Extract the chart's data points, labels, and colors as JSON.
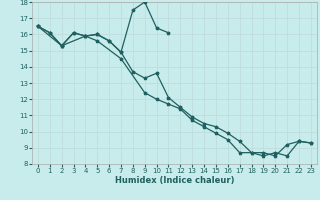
{
  "xlabel": "Humidex (Indice chaleur)",
  "bg_color": "#c8ecec",
  "grid_color": "#c0dcdc",
  "line_color": "#206060",
  "xlim": [
    -0.5,
    23.5
  ],
  "ylim": [
    8,
    18
  ],
  "xticks": [
    0,
    1,
    2,
    3,
    4,
    5,
    6,
    7,
    8,
    9,
    10,
    11,
    12,
    13,
    14,
    15,
    16,
    17,
    18,
    19,
    20,
    21,
    22,
    23
  ],
  "yticks": [
    8,
    9,
    10,
    11,
    12,
    13,
    14,
    15,
    16,
    17,
    18
  ],
  "line1_x": [
    0,
    1,
    2,
    3,
    4,
    5,
    6,
    7,
    8,
    9,
    10,
    11
  ],
  "line1_y": [
    16.5,
    16.1,
    15.3,
    16.1,
    15.9,
    16.0,
    15.6,
    14.9,
    17.5,
    18.0,
    16.4,
    16.1
  ],
  "line2_x": [
    0,
    1,
    2,
    3,
    4,
    5,
    6,
    7,
    8,
    9,
    10,
    11,
    12,
    13,
    14,
    15,
    16,
    17,
    18,
    19,
    20,
    21,
    22,
    23
  ],
  "line2_y": [
    16.5,
    16.1,
    15.3,
    16.1,
    15.9,
    16.0,
    15.6,
    14.9,
    13.7,
    13.3,
    13.6,
    12.1,
    11.5,
    10.9,
    10.5,
    10.3,
    9.9,
    9.4,
    8.7,
    8.7,
    8.5,
    9.2,
    9.4,
    9.3
  ],
  "line3_x": [
    0,
    2,
    4,
    5,
    7,
    9,
    10,
    11,
    12,
    13,
    14,
    15,
    16,
    17,
    18,
    19,
    20,
    21,
    22,
    23
  ],
  "line3_y": [
    16.5,
    15.3,
    15.9,
    15.6,
    14.5,
    12.4,
    12.0,
    11.7,
    11.4,
    10.7,
    10.3,
    9.9,
    9.5,
    8.7,
    8.7,
    8.5,
    8.7,
    8.5,
    9.4,
    9.3
  ],
  "tick_fontsize": 5.0,
  "xlabel_fontsize": 6.0,
  "marker_size": 2.5,
  "line_width": 0.9
}
